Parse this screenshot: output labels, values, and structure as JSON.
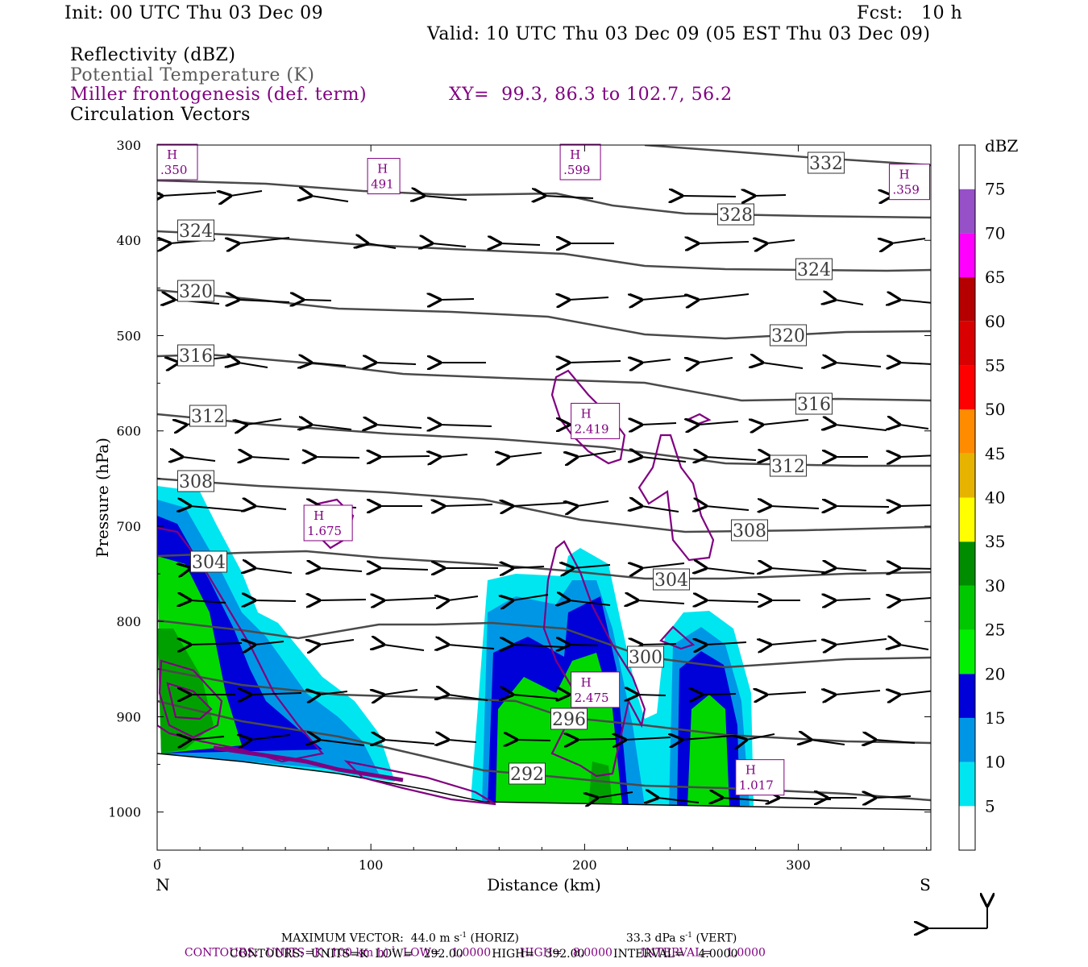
{
  "header": {
    "init": "Init: 00 UTC Thu 03 Dec 09",
    "fcst": "Fcst:   10 h",
    "valid": "Valid: 10 UTC Thu 03 Dec 09 (05 EST Thu 03 Dec 09)",
    "field1": "Reflectivity (dBZ)",
    "field2": "Potential Temperature (K)",
    "field3": "Miller frontogenesis (def. term)",
    "xy": "XY=  99.3, 86.3 to 102.7, 56.2",
    "field4": "Circulation Vectors"
  },
  "footer": {
    "max_vector": "MAXIMUM VECTOR:  44.0 m s",
    "max_vector_sup": "-1",
    "max_vector_horiz": " (HORIZ)",
    "max_vector_vert": "33.3 dPa s",
    "max_vector_vert_sup": "-1",
    "max_vector_vert_end": " (VERT)",
    "contours1_a": "CONTOURS:  UNITS=K (100 km h)",
    "contours1_sup": "-1",
    "contours1_b": "  LOW=   1.0000        HIGH=   8.0000        INTERVAL=    1.0000",
    "contours2": "CONTOURS:  UNITS=K  LOW=   292.00        HIGH=   392.00        INTERVAL=    4.0000"
  },
  "colors": {
    "frontogenesis": "#800080",
    "theta": "#4a4a4a",
    "cyan": "#00e6f0",
    "lightblue": "#0096e6",
    "blue": "#0000d8",
    "green": "#00d800",
    "darkgreen": "#00a000"
  },
  "chart_data": {
    "type": "cross-section",
    "xlabel": "Distance (km)",
    "ylabel": "Pressure (hPa)",
    "xlim": [
      0,
      362
    ],
    "ylim": [
      1040,
      300
    ],
    "xticks": [
      "0",
      "100",
      "200",
      "300"
    ],
    "yticks": [
      "300",
      "400",
      "500",
      "600",
      "700",
      "800",
      "900",
      "1000"
    ],
    "left_end": "N",
    "right_end": "S",
    "colorbar": {
      "unit": "dBZ",
      "levels": [
        "5",
        "10",
        "15",
        "20",
        "25",
        "30",
        "35",
        "40",
        "45",
        "50",
        "55",
        "60",
        "65",
        "70",
        "75"
      ],
      "colors": [
        "#ffffff",
        "#00e6f0",
        "#0096e6",
        "#0000d8",
        "#00f000",
        "#00c800",
        "#008c00",
        "#ffff00",
        "#e6b400",
        "#ff8c00",
        "#ff0000",
        "#d80000",
        "#b40000",
        "#ff00ff",
        "#9650c8"
      ]
    },
    "theta_labels": [
      "332",
      "328",
      "324",
      "324",
      "320",
      "320",
      "316",
      "316",
      "312",
      "312",
      "308",
      "308",
      "304",
      "304",
      "300",
      "296",
      "292"
    ],
    "frontogenesis_maxima": [
      {
        "label": "H",
        "value": ".350",
        "x": 3,
        "p": 308
      },
      {
        "label": "H",
        "value": "491",
        "x": 106,
        "p": 336
      },
      {
        "label": "H",
        "value": ".599",
        "x": 198,
        "p": 318
      },
      {
        "label": "H",
        "value": ".359",
        "x": 352,
        "p": 342
      },
      {
        "label": "H",
        "value": "2.419",
        "x": 205,
        "p": 593
      },
      {
        "label": "H",
        "value": "1.675",
        "x": 80,
        "p": 700
      },
      {
        "label": "H",
        "value": "2.475",
        "x": 205,
        "p": 875
      },
      {
        "label": "H",
        "value": "1.017",
        "x": 282,
        "p": 967
      }
    ]
  }
}
